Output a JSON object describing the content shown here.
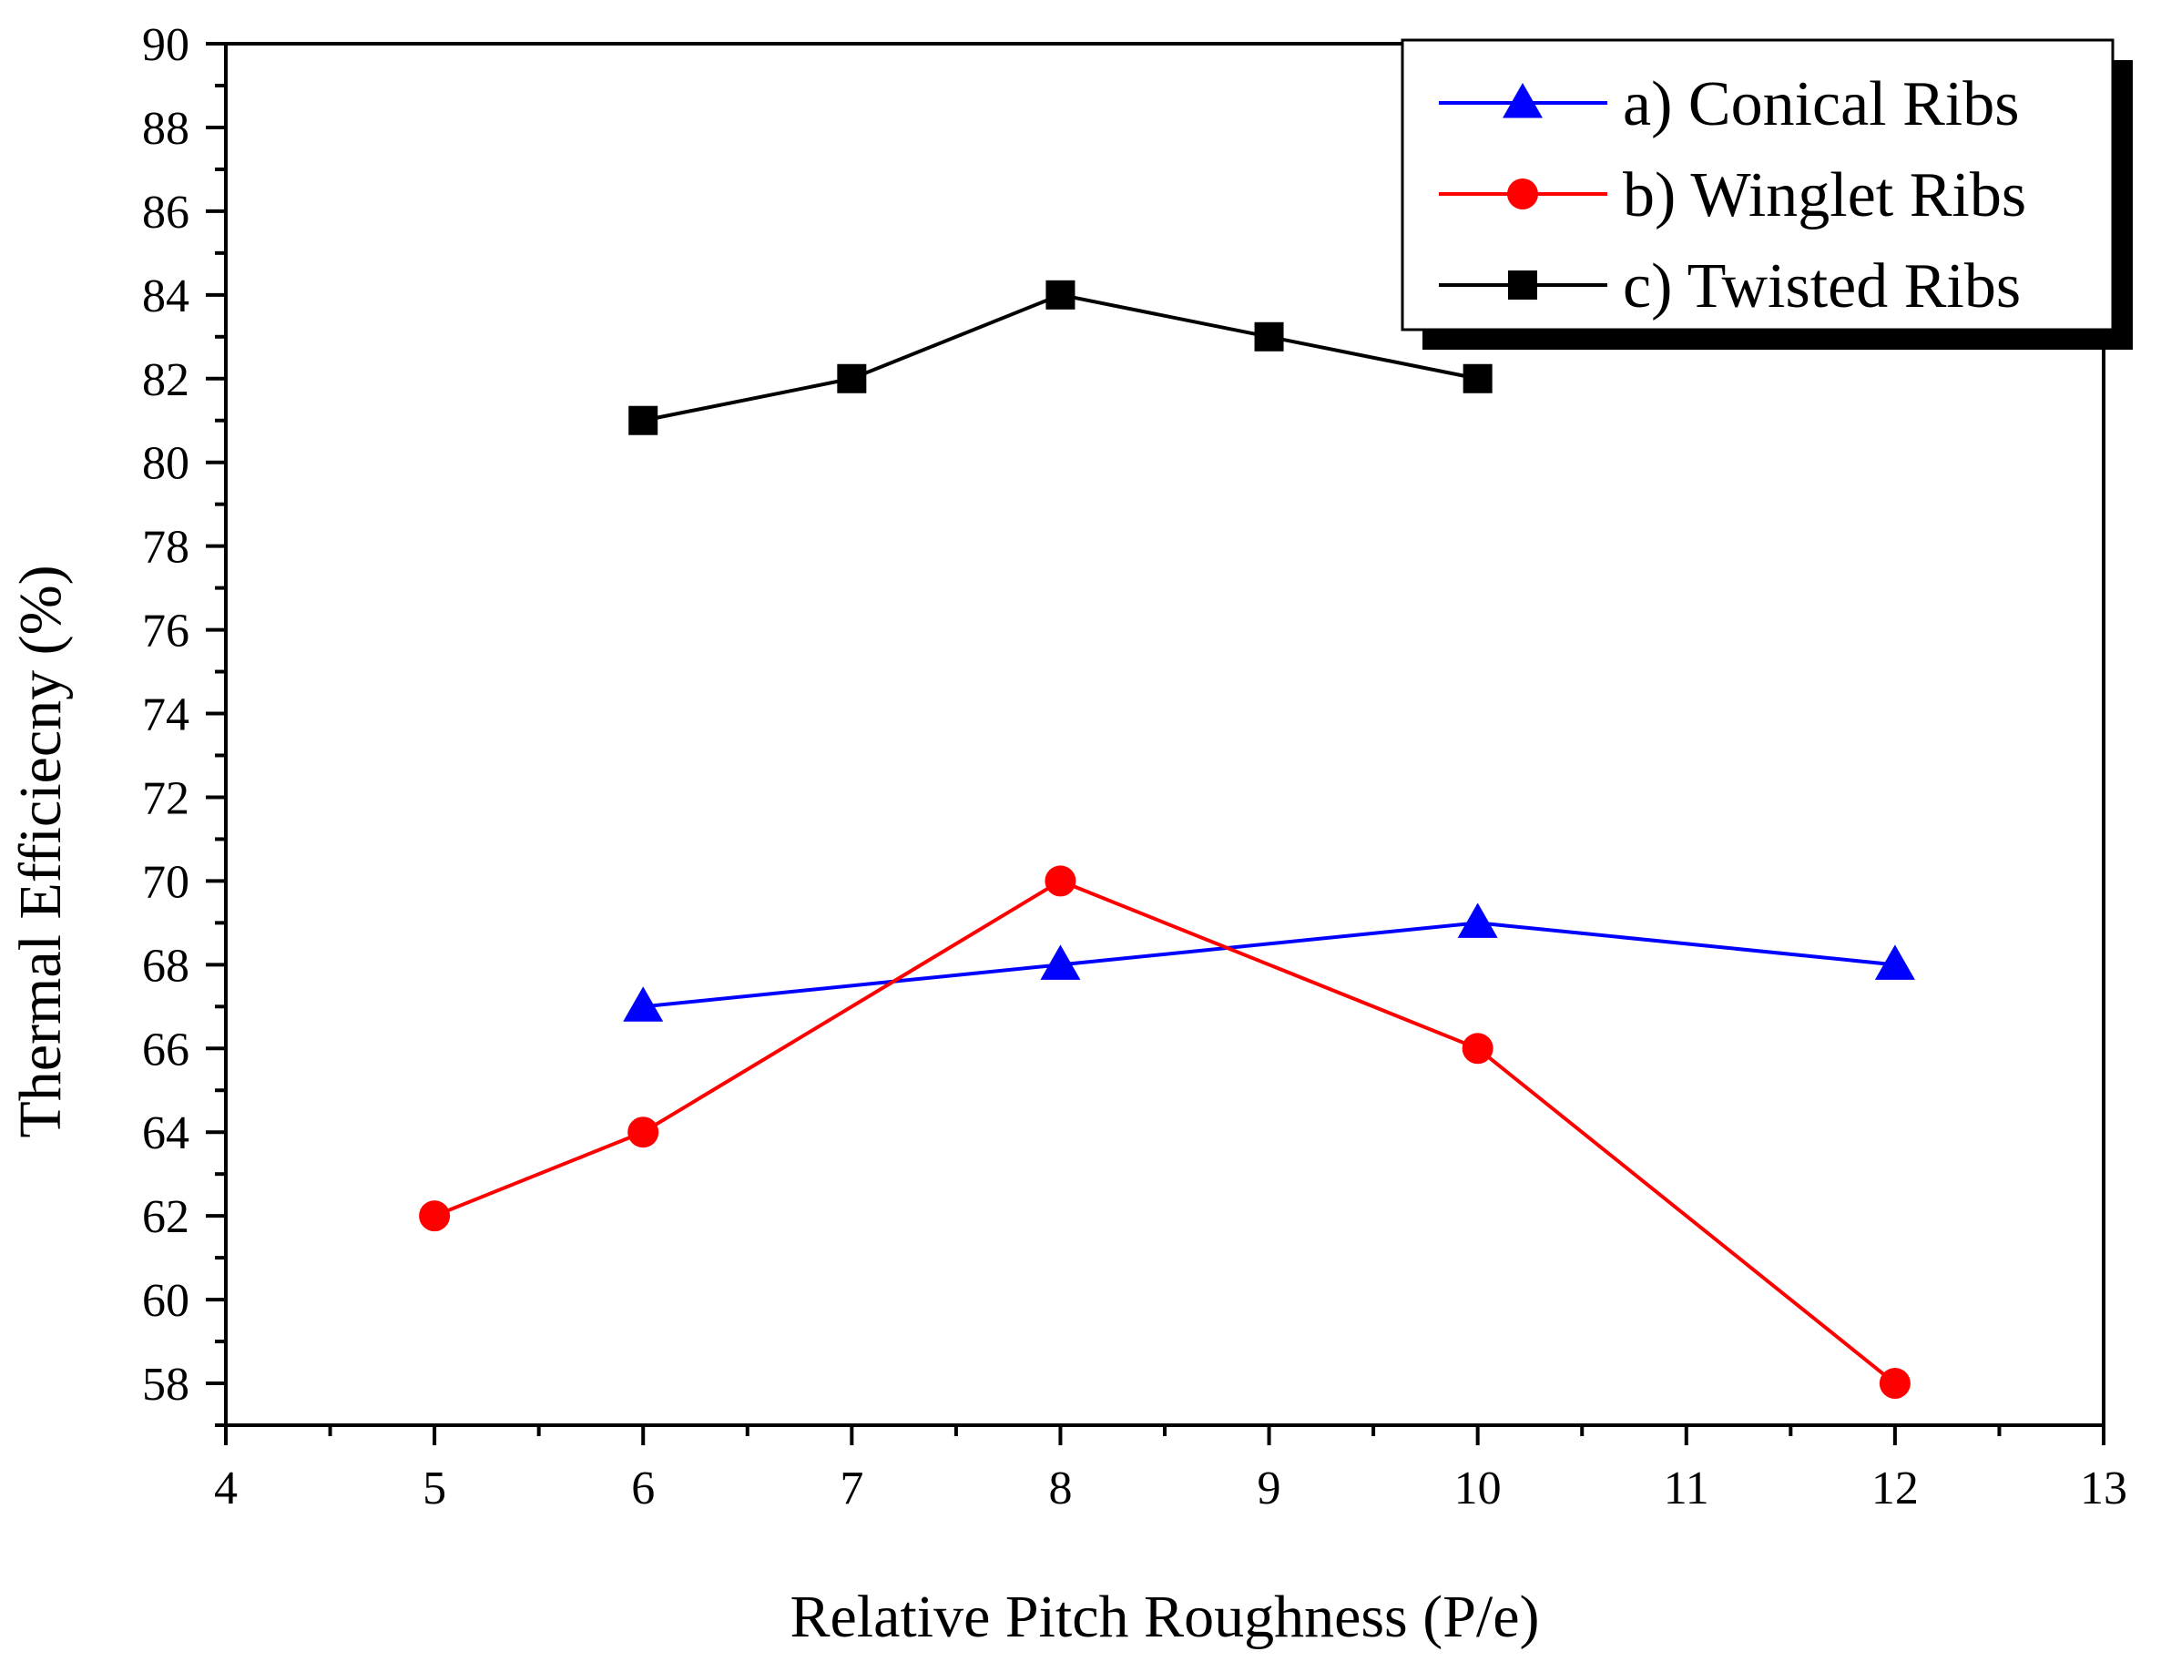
{
  "chart_data": {
    "type": "line",
    "title": "",
    "xlabel": "Relative Pitch Roughness (P/e)",
    "ylabel": "Thermal Efficiecny (%)",
    "xlim": [
      4,
      13
    ],
    "ylim": [
      57,
      90
    ],
    "xticks": [
      4,
      5,
      6,
      7,
      8,
      9,
      10,
      11,
      12,
      13
    ],
    "yticks": [
      58,
      60,
      62,
      64,
      66,
      68,
      70,
      72,
      74,
      76,
      78,
      80,
      82,
      84,
      86,
      88,
      90
    ],
    "legend_position": "top-right",
    "series": [
      {
        "name": "a) Conical Ribs",
        "color": "#0000ff",
        "marker": "triangle",
        "x": [
          6,
          8,
          10,
          12
        ],
        "y": [
          67,
          68,
          69,
          68
        ]
      },
      {
        "name": "b) Winglet Ribs",
        "color": "#ff0000",
        "marker": "circle",
        "x": [
          5,
          6,
          8,
          10,
          12
        ],
        "y": [
          62,
          64,
          70,
          66,
          58
        ]
      },
      {
        "name": "c) Twisted Ribs",
        "color": "#000000",
        "marker": "square",
        "x": [
          6,
          7,
          8,
          9,
          10
        ],
        "y": [
          81,
          82,
          84,
          83,
          82
        ]
      }
    ]
  }
}
